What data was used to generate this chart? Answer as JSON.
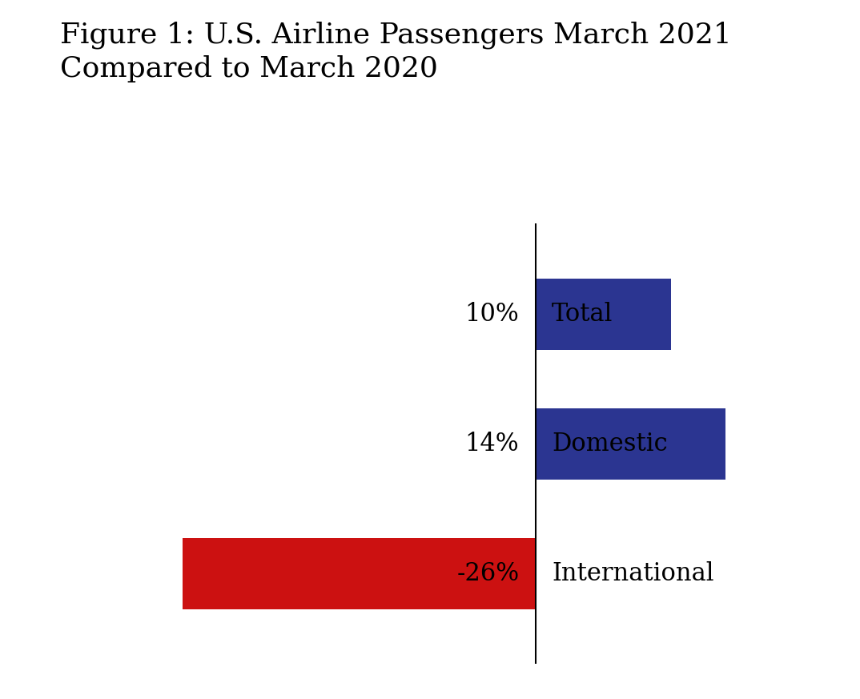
{
  "title": "Figure 1: U.S. Airline Passengers March 2021\nCompared to March 2020",
  "categories": [
    "Total",
    "Domestic",
    "International"
  ],
  "values": [
    10,
    14,
    -26
  ],
  "labels": [
    "10%",
    "14%",
    "-26%"
  ],
  "bar_colors": [
    "#2b3591",
    "#2b3591",
    "#cc1111"
  ],
  "background_color": "#ffffff",
  "title_fontsize": 26,
  "label_fontsize": 22,
  "category_fontsize": 22,
  "bar_height": 0.55,
  "xlim": [
    -35,
    22
  ],
  "ylim": [
    -0.7,
    2.7
  ]
}
